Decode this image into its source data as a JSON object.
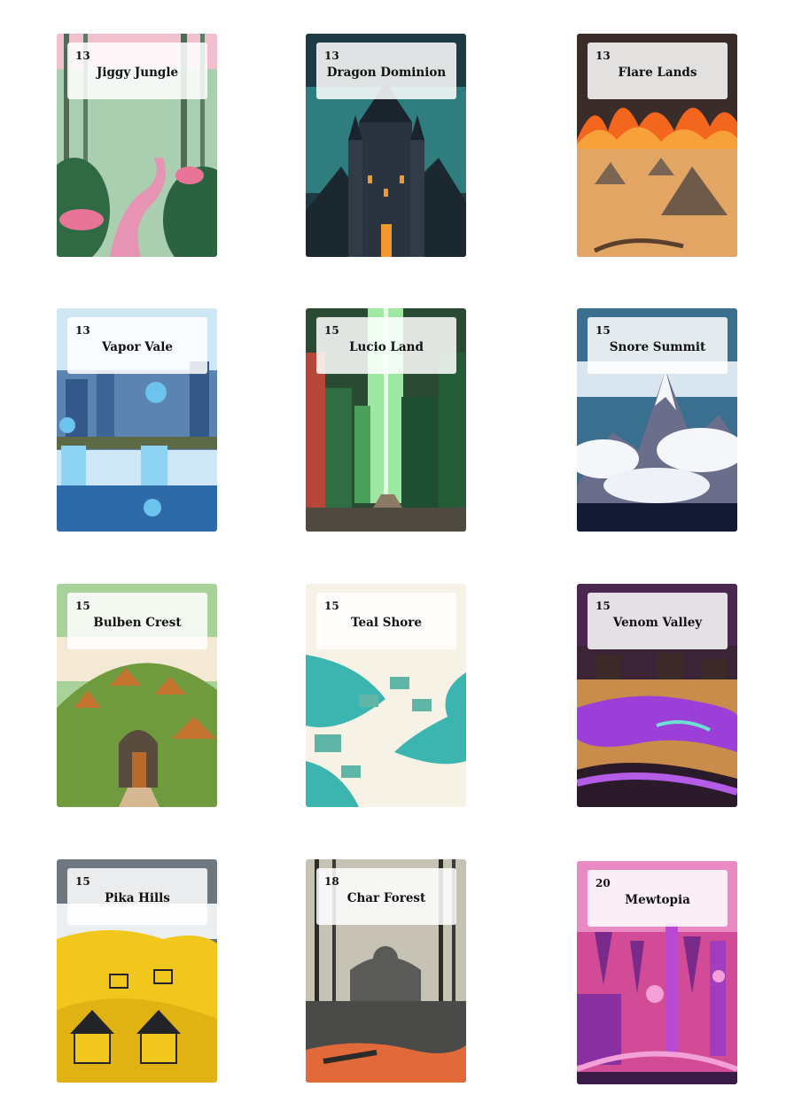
{
  "cards": [
    {
      "level": "13",
      "name": "Jiggy Jungle",
      "art": "jungle-art",
      "colors": {
        "sky": "#9fc7a8",
        "ground": "#3f7a4c",
        "accent": "#e8749a"
      }
    },
    {
      "level": "13",
      "name": "Dragon Dominion",
      "art": "castle-art",
      "colors": {
        "sky": "#2f7d7f",
        "ground": "#1c2830",
        "accent": "#f29a2c"
      }
    },
    {
      "level": "13",
      "name": "Flare Lands",
      "art": "desert-fire-art",
      "colors": {
        "sky": "#3a2c28",
        "ground": "#e3a564",
        "accent": "#f2661d"
      }
    },
    {
      "level": "13",
      "name": "Vapor Vale",
      "art": "waterfall-city-art",
      "colors": {
        "sky": "#cfe6f5",
        "ground": "#2f6aa8",
        "accent": "#6cc3ee"
      }
    },
    {
      "level": "15",
      "name": "Lucio Land",
      "art": "green-city-art",
      "colors": {
        "sky": "#9fe8a4",
        "ground": "#2a4a33",
        "accent": "#b6463a"
      }
    },
    {
      "level": "15",
      "name": "Snore Summit",
      "art": "snow-mountain-art",
      "colors": {
        "sky": "#3b6f90",
        "ground": "#131a33",
        "accent": "#f4f6fa"
      }
    },
    {
      "level": "15",
      "name": "Bulben Crest",
      "art": "hill-village-art",
      "colors": {
        "sky": "#a9d29a",
        "ground": "#6f9a3e",
        "accent": "#c4742e"
      }
    },
    {
      "level": "15",
      "name": "Teal Shore",
      "art": "beach-town-art",
      "colors": {
        "sky": "#f6f2e6",
        "ground": "#3cb5b0",
        "accent": "#5fb6a7"
      }
    },
    {
      "level": "15",
      "name": "Venom Valley",
      "art": "purple-river-art",
      "colors": {
        "sky": "#4a2850",
        "ground": "#c98c4a",
        "accent": "#9b3fd8"
      }
    },
    {
      "level": "15",
      "name": "Pika Hills",
      "art": "yellow-hills-art",
      "colors": {
        "sky": "#6e7680",
        "ground": "#f1c61d",
        "accent": "#222428"
      }
    },
    {
      "level": "18",
      "name": "Char Forest",
      "art": "burnt-forest-art",
      "colors": {
        "sky": "#c6c3b4",
        "ground": "#4a4a48",
        "accent": "#e2693a"
      }
    },
    {
      "level": "20",
      "name": "Mewtopia",
      "art": "crystal-city-art",
      "colors": {
        "sky": "#d14b96",
        "ground": "#7a2a88",
        "accent": "#f4a0d8"
      }
    }
  ]
}
